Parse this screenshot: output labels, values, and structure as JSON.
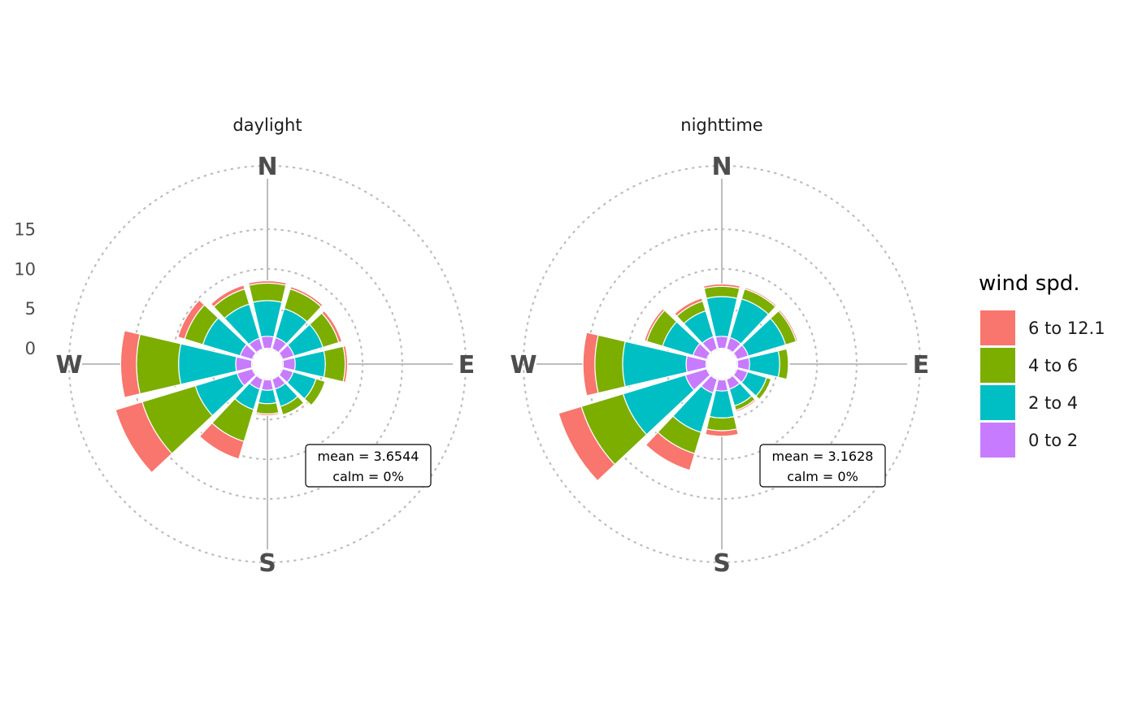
{
  "chart_data": {
    "type": "windrose",
    "legend": {
      "title": "wind spd.",
      "position": "right",
      "items": [
        {
          "label": "6 to 12.1",
          "color": "#F8766D"
        },
        {
          "label": "4 to 6",
          "color": "#7CAE00"
        },
        {
          "label": "2 to 4",
          "color": "#00BFC4"
        },
        {
          "label": "0 to 2",
          "color": "#C77CFF"
        }
      ]
    },
    "compass_labels": {
      "n": "N",
      "e": "E",
      "s": "S",
      "w": "W"
    },
    "radial_ticks": [
      "0",
      "5",
      "10",
      "15"
    ],
    "radial_tick_values": [
      0,
      5,
      10,
      15
    ],
    "inner_offset": 2,
    "radial_max": 25,
    "grid": "dotted",
    "direction_bins": [
      0,
      30,
      60,
      90,
      120,
      150,
      180,
      210,
      240,
      270,
      300,
      330
    ],
    "bin_order": [
      "0 to 2",
      "2 to 4",
      "4 to 6",
      "6 to 12.1"
    ],
    "panels": [
      {
        "title": "daylight",
        "stats": {
          "mean": "mean = 3.6544",
          "calm": "calm = 0%"
        },
        "cumulative": [
          [
            1.5,
            6.0,
            8.2,
            8.5
          ],
          [
            1.5,
            5.3,
            7.9,
            8.2
          ],
          [
            1.5,
            5.3,
            7.4,
            7.8
          ],
          [
            1.5,
            5.3,
            7.8,
            8.1
          ],
          [
            1.4,
            4.4,
            5.6,
            5.7
          ],
          [
            1.3,
            3.6,
            4.7,
            4.8
          ],
          [
            1.3,
            3.0,
            4.3,
            4.5
          ],
          [
            1.3,
            4.0,
            8.2,
            10.5
          ],
          [
            2.0,
            7.5,
            14.5,
            18.0
          ],
          [
            2.0,
            9.2,
            14.5,
            16.5
          ],
          [
            1.6,
            6.5,
            8.9,
            9.8
          ],
          [
            1.4,
            5.9,
            7.9,
            8.4
          ]
        ]
      },
      {
        "title": "nighttime",
        "stats": {
          "mean": "mean = 3.1628",
          "calm": "calm = 0%"
        },
        "cumulative": [
          [
            1.5,
            6.5,
            7.8,
            8.1
          ],
          [
            1.5,
            6.6,
            7.9,
            8.1
          ],
          [
            1.5,
            6.4,
            7.8,
            8.0
          ],
          [
            1.5,
            5.3,
            6.4,
            6.5
          ],
          [
            1.4,
            3.9,
            4.5,
            4.6
          ],
          [
            1.3,
            3.5,
            4.1,
            4.3
          ],
          [
            1.4,
            4.8,
            6.4,
            7.1
          ],
          [
            1.8,
            7.0,
            9.8,
            12.0
          ],
          [
            2.8,
            11.0,
            16.5,
            19.5
          ],
          [
            2.5,
            10.5,
            14.0,
            15.5
          ],
          [
            1.8,
            5.8,
            7.9,
            8.2
          ],
          [
            1.6,
            5.0,
            6.3,
            6.7
          ]
        ]
      }
    ]
  }
}
